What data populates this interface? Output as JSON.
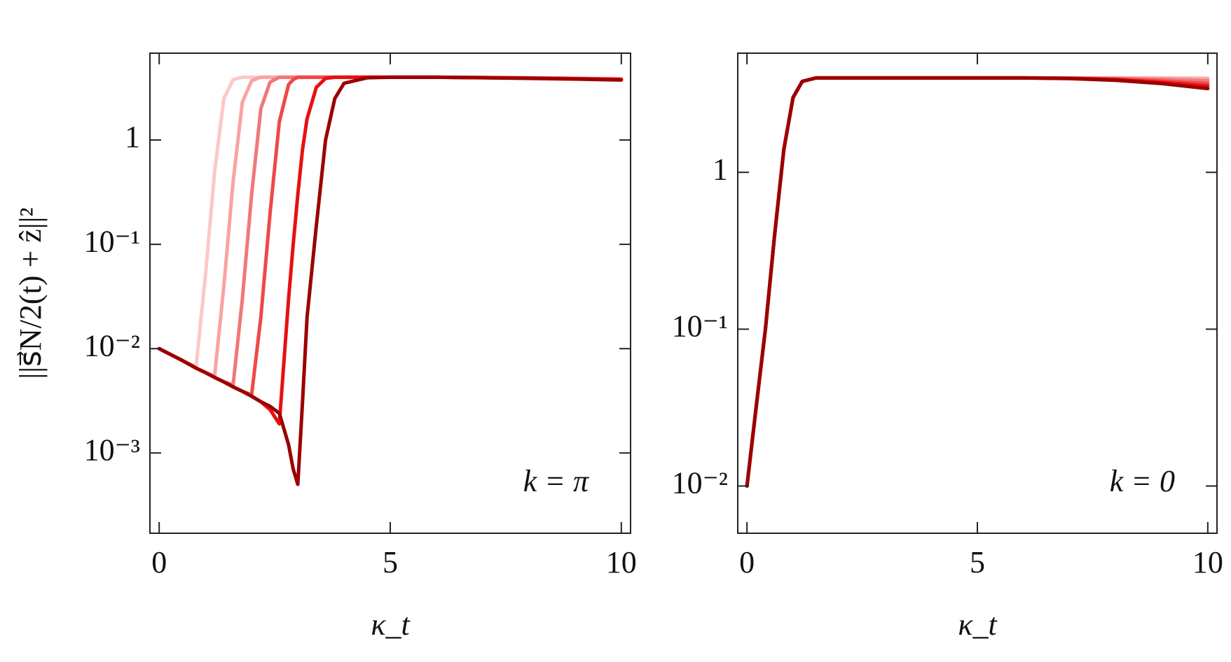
{
  "chart_data": [
    {
      "type": "line",
      "yscale": "log",
      "ylabel": "||s⃗N/2(t) + ẑ||²",
      "xlabel": "κ_t",
      "annotation": "k = π",
      "xlim": [
        -0.2,
        10.2
      ],
      "xticks": [
        0,
        5,
        10
      ],
      "ylim": [
        0.00017,
        6.8
      ],
      "yticks": [
        {
          "value": 0.001,
          "label": "10⁻³"
        },
        {
          "value": 0.01,
          "label": "10⁻²"
        },
        {
          "value": 0.1,
          "label": "10⁻¹"
        },
        1
      ],
      "x": [
        0,
        0.5,
        0.8,
        1,
        1.2,
        1.4,
        1.6,
        1.8,
        2,
        2.2,
        2.4,
        2.6,
        2.8,
        2.9,
        3,
        3.1,
        3.2,
        3.4,
        3.6,
        3.8,
        4,
        4.5,
        5,
        6,
        7,
        8,
        9,
        10
      ],
      "series": [
        {
          "color": "#fcc8c8",
          "values": [
            0.01,
            0.0077,
            0.0068,
            0.05,
            0.5,
            2.5,
            3.8,
            4.0,
            4.0,
            4.0,
            4.0,
            4.0,
            4.0,
            4.0,
            4.0,
            4.0,
            4.0,
            4.0,
            4.0,
            4.0,
            4.0,
            4.0,
            4.0,
            4.0,
            3.98,
            3.95,
            3.92,
            3.88
          ]
        },
        {
          "color": "#f9a3a3",
          "values": [
            0.01,
            0.0077,
            0.0065,
            0.0059,
            0.0055,
            0.04,
            0.4,
            2.3,
            3.7,
            4.0,
            4.0,
            4.0,
            4.0,
            4.0,
            4.0,
            4.0,
            4.0,
            4.0,
            4.0,
            4.0,
            4.0,
            4.0,
            4.0,
            4.0,
            3.98,
            3.95,
            3.9,
            3.85
          ]
        },
        {
          "color": "#f07878",
          "values": [
            0.01,
            0.0077,
            0.0065,
            0.0059,
            0.0053,
            0.0048,
            0.0045,
            0.03,
            0.3,
            2.0,
            3.6,
            4.0,
            4.0,
            4.0,
            4.0,
            4.0,
            4.0,
            4.0,
            4.0,
            4.0,
            4.0,
            4.0,
            4.0,
            4.0,
            3.97,
            3.94,
            3.89,
            3.84
          ]
        },
        {
          "color": "#f04848",
          "values": [
            0.01,
            0.0077,
            0.0065,
            0.0059,
            0.0053,
            0.0048,
            0.0043,
            0.0039,
            0.0036,
            0.02,
            0.2,
            1.5,
            3.4,
            3.8,
            4.0,
            4.0,
            4.0,
            4.0,
            4.0,
            4.0,
            4.0,
            4.0,
            4.0,
            4.0,
            3.97,
            3.93,
            3.88,
            3.82
          ]
        },
        {
          "color": "#e81010",
          "values": [
            0.01,
            0.0077,
            0.0065,
            0.0059,
            0.0053,
            0.0048,
            0.0043,
            0.0039,
            0.0035,
            0.0031,
            0.0026,
            0.0019,
            0.03,
            0.1,
            0.3,
            0.8,
            1.6,
            3.2,
            3.9,
            4.0,
            4.0,
            4.0,
            4.0,
            4.0,
            3.96,
            3.92,
            3.86,
            3.8
          ]
        },
        {
          "color": "#9b0000",
          "values": [
            0.01,
            0.0077,
            0.0065,
            0.0059,
            0.0053,
            0.0048,
            0.0043,
            0.0039,
            0.0035,
            0.0031,
            0.0028,
            0.0024,
            0.0012,
            0.0007,
            0.0005,
            0.003,
            0.02,
            0.15,
            1.0,
            2.5,
            3.5,
            3.95,
            4.0,
            4.0,
            3.95,
            3.9,
            3.84,
            3.76
          ]
        }
      ]
    },
    {
      "type": "line",
      "yscale": "log",
      "xlabel": "κ_t",
      "annotation": "k = 0",
      "xlim": [
        -0.2,
        10.2
      ],
      "xticks": [
        0,
        5,
        10
      ],
      "ylim": [
        0.005,
        5.75
      ],
      "yticks": [
        {
          "value": 0.01,
          "label": "10⁻²"
        },
        {
          "value": 0.1,
          "label": "10⁻¹"
        },
        1
      ],
      "x": [
        0,
        0.2,
        0.4,
        0.6,
        0.8,
        1,
        1.2,
        1.5,
        2,
        3,
        4,
        5,
        6,
        7,
        8,
        9,
        10
      ],
      "series": [
        {
          "color": "#fcc8c8",
          "values": [
            0.01,
            0.032,
            0.1,
            0.4,
            1.4,
            3.0,
            3.8,
            4.0,
            4.0,
            4.0,
            4.0,
            4.0,
            4.0,
            4.0,
            4.0,
            4.0,
            4.0
          ]
        },
        {
          "color": "#f9a3a3",
          "values": [
            0.01,
            0.032,
            0.1,
            0.4,
            1.4,
            3.0,
            3.8,
            4.0,
            4.0,
            4.0,
            4.0,
            4.0,
            4.0,
            4.0,
            3.99,
            3.97,
            3.93
          ]
        },
        {
          "color": "#f07878",
          "values": [
            0.01,
            0.032,
            0.1,
            0.4,
            1.4,
            3.0,
            3.8,
            4.0,
            4.0,
            4.0,
            4.0,
            4.0,
            4.0,
            3.99,
            3.96,
            3.9,
            3.82
          ]
        },
        {
          "color": "#f04848",
          "values": [
            0.01,
            0.032,
            0.1,
            0.4,
            1.4,
            3.0,
            3.8,
            4.0,
            4.0,
            4.0,
            4.0,
            4.0,
            4.0,
            3.98,
            3.93,
            3.82,
            3.68
          ]
        },
        {
          "color": "#e81010",
          "values": [
            0.01,
            0.032,
            0.1,
            0.4,
            1.4,
            3.0,
            3.8,
            4.0,
            4.0,
            4.0,
            4.0,
            4.0,
            4.0,
            3.97,
            3.9,
            3.75,
            3.55
          ]
        },
        {
          "color": "#9b0000",
          "values": [
            0.01,
            0.032,
            0.1,
            0.4,
            1.4,
            3.0,
            3.8,
            4.0,
            4.0,
            4.0,
            4.0,
            4.0,
            4.0,
            3.96,
            3.86,
            3.68,
            3.42
          ]
        }
      ]
    }
  ]
}
